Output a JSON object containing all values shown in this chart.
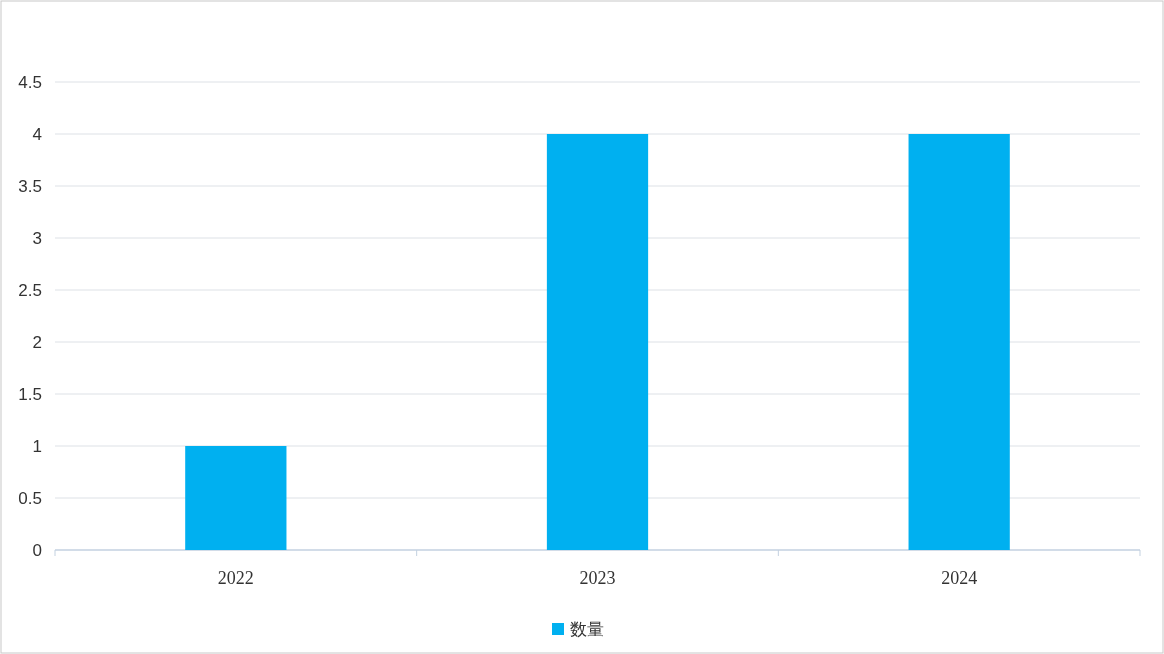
{
  "chart_data": {
    "type": "bar",
    "categories": [
      "2022",
      "2023",
      "2024"
    ],
    "series": [
      {
        "name": "数量",
        "color": "#00b0f0",
        "values": [
          1,
          4,
          4
        ]
      }
    ],
    "ylim": [
      0,
      4.5
    ],
    "yticks": [
      0,
      0.5,
      1,
      1.5,
      2,
      2.5,
      3,
      3.5,
      4,
      4.5
    ],
    "grid": "y",
    "legend": "bottom"
  }
}
